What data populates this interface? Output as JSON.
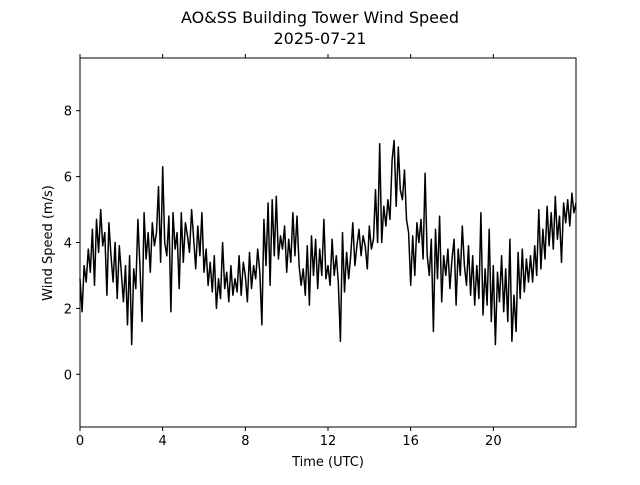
{
  "chart_data": {
    "type": "line",
    "title": "AO&SS Building Tower Wind Speed",
    "subtitle": "2025-07-21",
    "xlabel": "Time (UTC)",
    "ylabel": "Wind Speed (m/s)",
    "xlim": [
      0,
      24
    ],
    "ylim": [
      -1.6,
      9.6
    ],
    "xticks": [
      0,
      4,
      8,
      12,
      16,
      20
    ],
    "yticks": [
      0,
      2,
      4,
      6,
      8
    ],
    "grid": false,
    "series": [
      {
        "color": "#000000",
        "points": [
          [
            0.0,
            2.9
          ],
          [
            0.1,
            1.9
          ],
          [
            0.2,
            3.3
          ],
          [
            0.3,
            2.8
          ],
          [
            0.4,
            3.8
          ],
          [
            0.5,
            3.1
          ],
          [
            0.6,
            4.4
          ],
          [
            0.7,
            2.7
          ],
          [
            0.8,
            4.7
          ],
          [
            0.9,
            3.7
          ],
          [
            1.0,
            5.0
          ],
          [
            1.1,
            3.9
          ],
          [
            1.2,
            4.3
          ],
          [
            1.3,
            2.4
          ],
          [
            1.4,
            4.6
          ],
          [
            1.5,
            3.6
          ],
          [
            1.6,
            2.8
          ],
          [
            1.7,
            4.0
          ],
          [
            1.8,
            2.3
          ],
          [
            1.9,
            3.9
          ],
          [
            2.0,
            3.1
          ],
          [
            2.1,
            2.2
          ],
          [
            2.2,
            3.3
          ],
          [
            2.3,
            1.5
          ],
          [
            2.4,
            3.6
          ],
          [
            2.5,
            0.9
          ],
          [
            2.6,
            3.2
          ],
          [
            2.7,
            2.6
          ],
          [
            2.8,
            4.7
          ],
          [
            2.9,
            3.3
          ],
          [
            3.0,
            1.6
          ],
          [
            3.1,
            4.9
          ],
          [
            3.2,
            3.5
          ],
          [
            3.3,
            4.3
          ],
          [
            3.4,
            3.1
          ],
          [
            3.5,
            4.6
          ],
          [
            3.6,
            3.9
          ],
          [
            3.7,
            4.3
          ],
          [
            3.8,
            5.7
          ],
          [
            3.9,
            3.4
          ],
          [
            4.0,
            6.3
          ],
          [
            4.1,
            4.0
          ],
          [
            4.2,
            3.6
          ],
          [
            4.3,
            4.8
          ],
          [
            4.4,
            1.9
          ],
          [
            4.5,
            4.9
          ],
          [
            4.6,
            3.8
          ],
          [
            4.7,
            4.3
          ],
          [
            4.8,
            2.6
          ],
          [
            4.9,
            4.9
          ],
          [
            5.0,
            3.4
          ],
          [
            5.1,
            4.6
          ],
          [
            5.2,
            4.2
          ],
          [
            5.3,
            3.7
          ],
          [
            5.4,
            5.0
          ],
          [
            5.5,
            4.1
          ],
          [
            5.6,
            3.2
          ],
          [
            5.7,
            4.5
          ],
          [
            5.8,
            3.6
          ],
          [
            5.9,
            4.9
          ],
          [
            6.0,
            3.1
          ],
          [
            6.1,
            3.8
          ],
          [
            6.2,
            2.7
          ],
          [
            6.3,
            3.4
          ],
          [
            6.4,
            2.5
          ],
          [
            6.5,
            3.6
          ],
          [
            6.6,
            2.0
          ],
          [
            6.7,
            2.9
          ],
          [
            6.8,
            2.3
          ],
          [
            6.9,
            4.0
          ],
          [
            7.0,
            2.6
          ],
          [
            7.1,
            3.1
          ],
          [
            7.2,
            2.2
          ],
          [
            7.3,
            3.3
          ],
          [
            7.4,
            2.4
          ],
          [
            7.5,
            2.9
          ],
          [
            7.6,
            2.5
          ],
          [
            7.7,
            3.6
          ],
          [
            7.8,
            2.4
          ],
          [
            7.9,
            3.4
          ],
          [
            8.0,
            3.0
          ],
          [
            8.1,
            2.2
          ],
          [
            8.2,
            3.7
          ],
          [
            8.3,
            2.6
          ],
          [
            8.4,
            3.3
          ],
          [
            8.5,
            2.9
          ],
          [
            8.6,
            3.8
          ],
          [
            8.7,
            3.1
          ],
          [
            8.8,
            1.5
          ],
          [
            8.9,
            4.7
          ],
          [
            9.0,
            3.3
          ],
          [
            9.1,
            5.2
          ],
          [
            9.2,
            2.7
          ],
          [
            9.3,
            5.3
          ],
          [
            9.4,
            3.6
          ],
          [
            9.5,
            5.4
          ],
          [
            9.6,
            3.5
          ],
          [
            9.7,
            4.2
          ],
          [
            9.8,
            3.8
          ],
          [
            9.9,
            4.5
          ],
          [
            10.0,
            3.1
          ],
          [
            10.1,
            4.1
          ],
          [
            10.2,
            3.4
          ],
          [
            10.3,
            4.9
          ],
          [
            10.4,
            3.6
          ],
          [
            10.5,
            4.8
          ],
          [
            10.6,
            3.3
          ],
          [
            10.7,
            2.7
          ],
          [
            10.8,
            3.2
          ],
          [
            10.9,
            2.4
          ],
          [
            11.0,
            3.9
          ],
          [
            11.1,
            2.1
          ],
          [
            11.2,
            4.2
          ],
          [
            11.3,
            3.0
          ],
          [
            11.4,
            4.1
          ],
          [
            11.5,
            2.6
          ],
          [
            11.6,
            3.8
          ],
          [
            11.7,
            3.0
          ],
          [
            11.8,
            4.7
          ],
          [
            11.9,
            2.9
          ],
          [
            12.0,
            3.3
          ],
          [
            12.1,
            2.7
          ],
          [
            12.2,
            4.1
          ],
          [
            12.3,
            3.0
          ],
          [
            12.4,
            3.6
          ],
          [
            12.5,
            2.8
          ],
          [
            12.6,
            1.0
          ],
          [
            12.7,
            4.3
          ],
          [
            12.8,
            2.5
          ],
          [
            12.9,
            3.7
          ],
          [
            13.0,
            2.9
          ],
          [
            13.1,
            3.6
          ],
          [
            13.2,
            4.6
          ],
          [
            13.3,
            3.3
          ],
          [
            13.4,
            3.9
          ],
          [
            13.5,
            4.4
          ],
          [
            13.6,
            3.6
          ],
          [
            13.7,
            4.2
          ],
          [
            13.8,
            3.9
          ],
          [
            13.9,
            3.2
          ],
          [
            14.0,
            4.5
          ],
          [
            14.1,
            3.8
          ],
          [
            14.2,
            4.1
          ],
          [
            14.3,
            5.6
          ],
          [
            14.4,
            4.0
          ],
          [
            14.5,
            7.0
          ],
          [
            14.6,
            4.0
          ],
          [
            14.7,
            5.1
          ],
          [
            14.8,
            4.5
          ],
          [
            14.9,
            5.3
          ],
          [
            15.0,
            4.7
          ],
          [
            15.1,
            6.5
          ],
          [
            15.2,
            7.1
          ],
          [
            15.3,
            5.1
          ],
          [
            15.4,
            6.9
          ],
          [
            15.5,
            5.6
          ],
          [
            15.6,
            5.3
          ],
          [
            15.7,
            6.2
          ],
          [
            15.8,
            4.7
          ],
          [
            15.9,
            4.3
          ],
          [
            16.0,
            2.7
          ],
          [
            16.1,
            4.2
          ],
          [
            16.2,
            3.0
          ],
          [
            16.3,
            4.6
          ],
          [
            16.4,
            4.0
          ],
          [
            16.5,
            4.7
          ],
          [
            16.6,
            3.5
          ],
          [
            16.7,
            6.1
          ],
          [
            16.8,
            3.6
          ],
          [
            16.9,
            3.0
          ],
          [
            17.0,
            4.1
          ],
          [
            17.1,
            1.3
          ],
          [
            17.2,
            4.4
          ],
          [
            17.3,
            2.9
          ],
          [
            17.4,
            4.8
          ],
          [
            17.5,
            2.2
          ],
          [
            17.6,
            3.6
          ],
          [
            17.7,
            3.0
          ],
          [
            17.8,
            3.8
          ],
          [
            17.9,
            2.6
          ],
          [
            18.0,
            3.5
          ],
          [
            18.1,
            4.1
          ],
          [
            18.2,
            2.1
          ],
          [
            18.3,
            3.8
          ],
          [
            18.4,
            3.0
          ],
          [
            18.5,
            4.5
          ],
          [
            18.6,
            3.3
          ],
          [
            18.7,
            2.7
          ],
          [
            18.8,
            3.9
          ],
          [
            18.9,
            2.4
          ],
          [
            19.0,
            3.6
          ],
          [
            19.1,
            2.1
          ],
          [
            19.2,
            3.3
          ],
          [
            19.3,
            2.3
          ],
          [
            19.4,
            4.9
          ],
          [
            19.5,
            1.8
          ],
          [
            19.6,
            3.2
          ],
          [
            19.7,
            2.1
          ],
          [
            19.8,
            4.4
          ],
          [
            19.9,
            1.6
          ],
          [
            20.0,
            3.3
          ],
          [
            20.1,
            0.9
          ],
          [
            20.2,
            3.1
          ],
          [
            20.3,
            2.2
          ],
          [
            20.4,
            3.6
          ],
          [
            20.5,
            1.9
          ],
          [
            20.6,
            3.2
          ],
          [
            20.7,
            1.6
          ],
          [
            20.8,
            4.1
          ],
          [
            20.9,
            1.0
          ],
          [
            21.0,
            2.4
          ],
          [
            21.1,
            1.3
          ],
          [
            21.2,
            3.7
          ],
          [
            21.3,
            2.3
          ],
          [
            21.4,
            3.8
          ],
          [
            21.5,
            2.5
          ],
          [
            21.6,
            3.5
          ],
          [
            21.7,
            2.8
          ],
          [
            21.8,
            3.6
          ],
          [
            21.9,
            2.8
          ],
          [
            22.0,
            3.9
          ],
          [
            22.1,
            3.0
          ],
          [
            22.2,
            5.0
          ],
          [
            22.3,
            3.2
          ],
          [
            22.4,
            4.4
          ],
          [
            22.5,
            3.5
          ],
          [
            22.6,
            5.1
          ],
          [
            22.7,
            3.9
          ],
          [
            22.8,
            4.9
          ],
          [
            22.9,
            3.8
          ],
          [
            23.0,
            5.4
          ],
          [
            23.1,
            4.1
          ],
          [
            23.2,
            4.8
          ],
          [
            23.3,
            3.4
          ],
          [
            23.4,
            5.2
          ],
          [
            23.5,
            4.6
          ],
          [
            23.6,
            5.3
          ],
          [
            23.7,
            4.5
          ],
          [
            23.8,
            5.5
          ],
          [
            23.9,
            4.9
          ],
          [
            24.0,
            5.2
          ]
        ]
      }
    ]
  }
}
